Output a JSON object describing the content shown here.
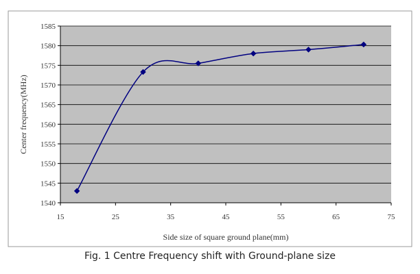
{
  "caption": "Fig. 1 Centre Frequency shift with Ground-plane size",
  "colors": {
    "plot_background": "#c0c0c0",
    "gridline": "#000000",
    "series": "#000080",
    "frame": "#9a9a9a"
  },
  "chart_data": {
    "type": "line",
    "smoothed": true,
    "marker": "diamond",
    "title": "",
    "xlabel": "Side size of square ground plane(mm)",
    "ylabel": "Center frequency(MHz)",
    "xlim": [
      15,
      75
    ],
    "ylim": [
      1540,
      1585
    ],
    "xticks": [
      15,
      25,
      35,
      45,
      55,
      65,
      75
    ],
    "yticks": [
      1540,
      1545,
      1550,
      1555,
      1560,
      1565,
      1570,
      1575,
      1580,
      1585
    ],
    "grid": "horizontal",
    "legend": "none",
    "series": [
      {
        "x": [
          18,
          30,
          40,
          50,
          60,
          70
        ],
        "values": [
          1543,
          1573.3,
          1575.5,
          1578,
          1579,
          1580.3
        ]
      }
    ]
  }
}
